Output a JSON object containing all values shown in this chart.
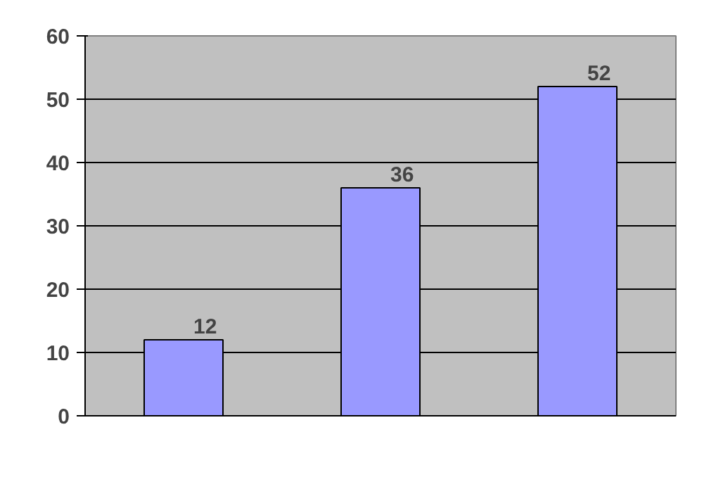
{
  "chart_data": {
    "type": "bar",
    "categories": [
      null,
      null,
      null
    ],
    "values": [
      12,
      36,
      52
    ],
    "color": "#9999ff",
    "ylim": [
      0,
      60
    ],
    "yticks": [
      0,
      10,
      20,
      30,
      40,
      50,
      60
    ],
    "grid": "y",
    "data_labels": true
  }
}
